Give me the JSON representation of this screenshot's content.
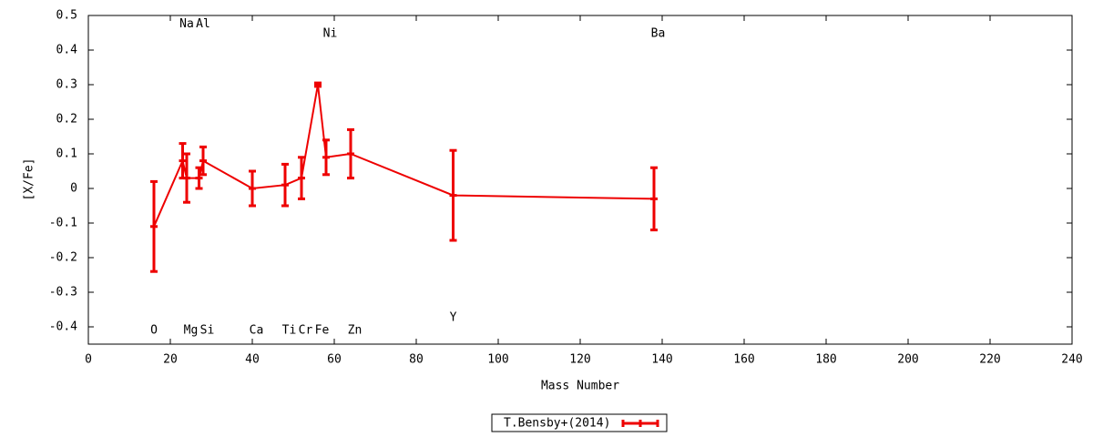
{
  "chart_data": {
    "type": "errorline",
    "xlabel": "Mass Number",
    "ylabel": "[X/Fe]",
    "xlim": [
      0,
      240
    ],
    "xticks": [
      0,
      20,
      40,
      60,
      80,
      100,
      120,
      140,
      160,
      180,
      200,
      220,
      240
    ],
    "ylim": [
      -0.45,
      0.5
    ],
    "yticks": [
      -0.4,
      -0.3,
      -0.2,
      -0.1,
      0,
      0.1,
      0.2,
      0.3,
      0.4,
      0.5
    ],
    "legend": "bottom",
    "series": [
      {
        "name": "T.Bensby+(2014)",
        "color": "#ee0000",
        "x": [
          16,
          23,
          24,
          27,
          28,
          40,
          48,
          52,
          56,
          58,
          64,
          89,
          138
        ],
        "values": [
          -0.11,
          0.08,
          0.03,
          0.03,
          0.08,
          0.0,
          0.01,
          0.03,
          0.3,
          0.09,
          0.1,
          -0.02,
          -0.03
        ],
        "errors": [
          0.13,
          0.05,
          0.07,
          0.03,
          0.04,
          0.05,
          0.06,
          0.06,
          0.005,
          0.05,
          0.07,
          0.13,
          0.09
        ]
      }
    ],
    "annotations": [
      {
        "text": "O",
        "x": 16,
        "y": -0.41
      },
      {
        "text": "Na",
        "x": 24,
        "y": 0.475
      },
      {
        "text": "Mg",
        "x": 25,
        "y": -0.41
      },
      {
        "text": "Al",
        "x": 28,
        "y": 0.475
      },
      {
        "text": "Si",
        "x": 29,
        "y": -0.41
      },
      {
        "text": "Ca",
        "x": 41,
        "y": -0.41
      },
      {
        "text": "Ti",
        "x": 49,
        "y": -0.41
      },
      {
        "text": "Cr",
        "x": 53,
        "y": -0.41
      },
      {
        "text": "Fe",
        "x": 57,
        "y": -0.41
      },
      {
        "text": "Ni",
        "x": 59,
        "y": 0.447
      },
      {
        "text": "Zn",
        "x": 65,
        "y": -0.41
      },
      {
        "text": "Y",
        "x": 89,
        "y": -0.374
      },
      {
        "text": "Ba",
        "x": 139,
        "y": 0.447
      }
    ]
  }
}
